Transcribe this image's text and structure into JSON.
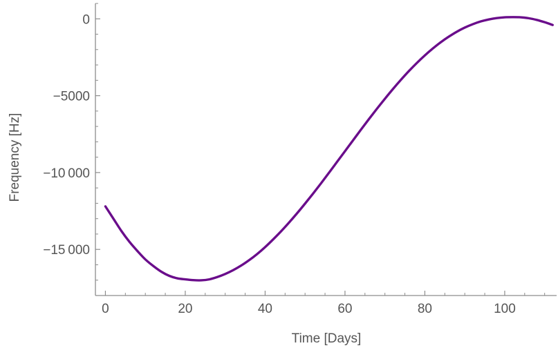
{
  "chart_data": {
    "type": "line",
    "title": "",
    "xlabel": "Time [Days]",
    "ylabel": "Frequency [Hz]",
    "xlim": [
      -2.5,
      113
    ],
    "ylim": [
      -18000,
      1000
    ],
    "x_ticks": [
      0,
      20,
      40,
      60,
      80,
      100
    ],
    "x_tick_labels": [
      "0",
      "20",
      "40",
      "60",
      "80",
      "100"
    ],
    "y_ticks": [
      0,
      -5000,
      -10000,
      -15000
    ],
    "y_tick_labels": [
      "0",
      "−5000",
      "−10 000",
      "−15 000"
    ],
    "grid": false,
    "legend": "none",
    "series": [
      {
        "color": "#6a0d8b",
        "x": [
          0,
          2,
          4,
          6,
          8,
          10,
          12,
          14,
          16,
          18,
          20,
          22,
          24,
          26,
          28,
          30,
          32,
          34,
          36,
          38,
          40,
          42,
          44,
          46,
          48,
          50,
          52,
          54,
          56,
          58,
          60,
          62,
          64,
          66,
          68,
          70,
          72,
          74,
          76,
          78,
          80,
          82,
          84,
          86,
          88,
          90,
          92,
          94,
          96,
          98,
          100,
          102,
          104,
          106,
          108,
          110,
          112
        ],
        "y": [
          -12200,
          -13000,
          -13800,
          -14500,
          -15100,
          -15650,
          -16080,
          -16450,
          -16720,
          -16880,
          -16950,
          -17000,
          -17010,
          -16950,
          -16800,
          -16600,
          -16350,
          -16050,
          -15700,
          -15300,
          -14850,
          -14350,
          -13820,
          -13250,
          -12650,
          -12020,
          -11370,
          -10700,
          -10010,
          -9310,
          -8610,
          -7910,
          -7210,
          -6520,
          -5850,
          -5200,
          -4570,
          -3970,
          -3400,
          -2870,
          -2380,
          -1930,
          -1520,
          -1160,
          -840,
          -570,
          -350,
          -170,
          -40,
          50,
          100,
          110,
          100,
          40,
          -70,
          -220,
          -400
        ]
      }
    ]
  }
}
